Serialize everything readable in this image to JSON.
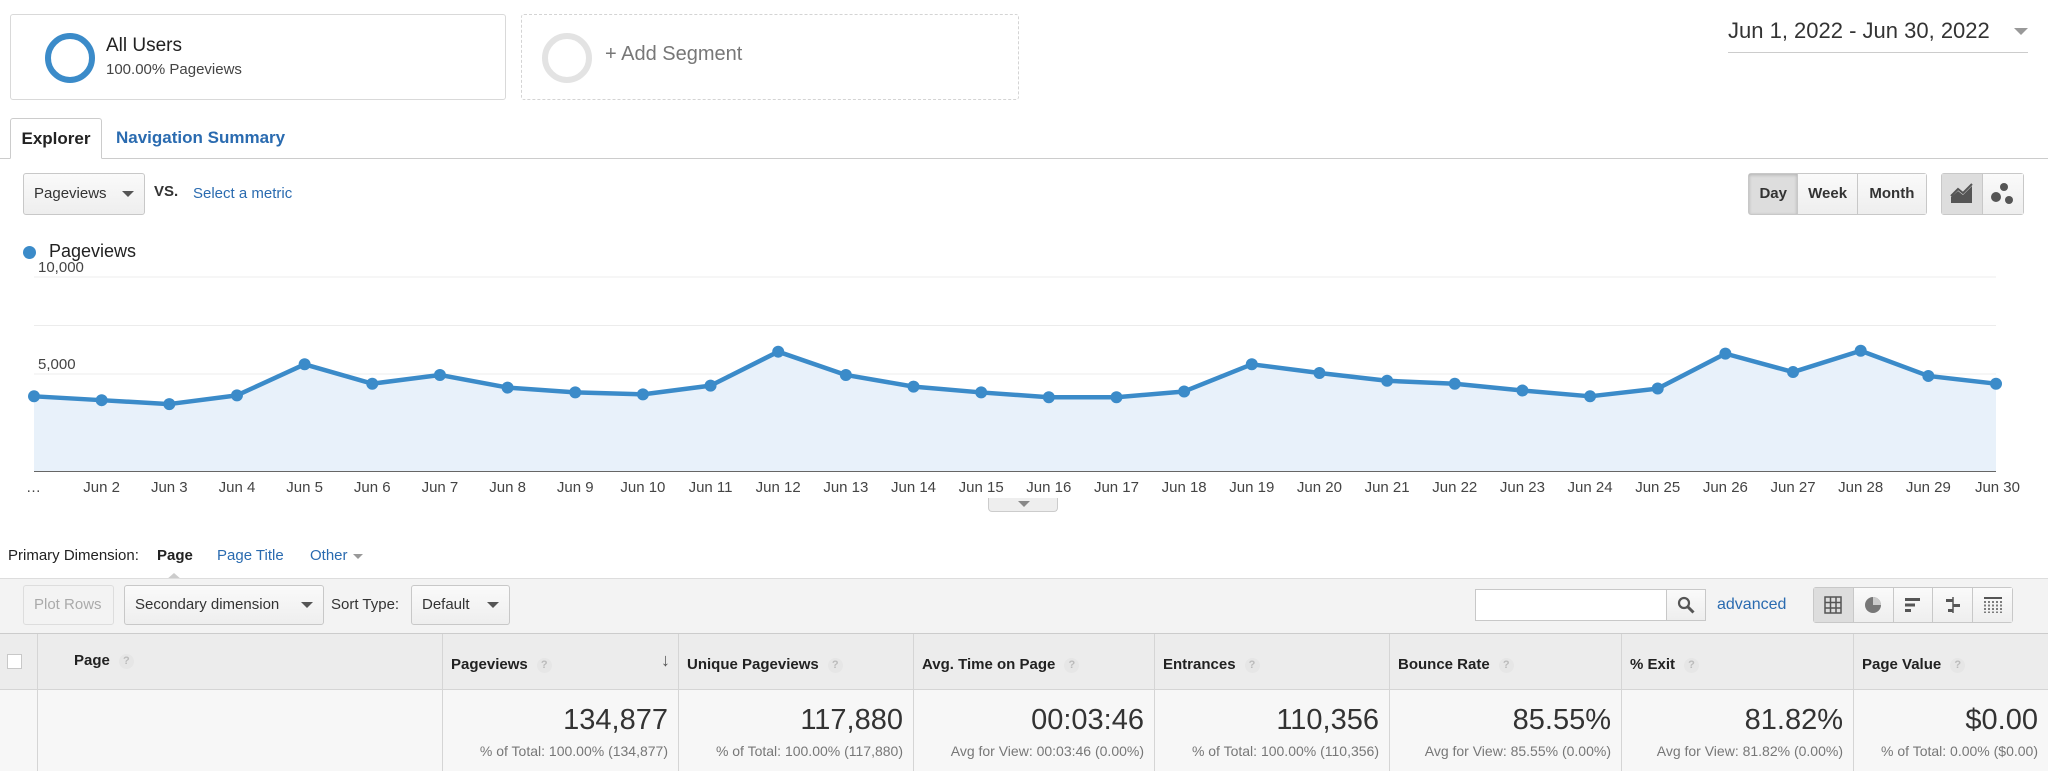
{
  "segments": {
    "all_users": {
      "title": "All Users",
      "subtitle": "100.00% Pageviews"
    },
    "add_segment": "+ Add Segment"
  },
  "date_range": "Jun 1, 2022 - Jun 30, 2022",
  "tabs": {
    "explorer": "Explorer",
    "navigation_summary": "Navigation Summary"
  },
  "metric": {
    "selected": "Pageviews",
    "vs": "VS.",
    "select_metric": "Select a metric"
  },
  "periods": {
    "day": "Day",
    "week": "Week",
    "month": "Month",
    "active": "Day"
  },
  "chart_types": [
    "line-chart-icon",
    "motion-chart-icon"
  ],
  "legend": {
    "label": "Pageviews",
    "color": "#3b8bc9"
  },
  "chart_data": {
    "type": "area",
    "x": [
      "…",
      "Jun 2",
      "Jun 3",
      "Jun 4",
      "Jun 5",
      "Jun 6",
      "Jun 7",
      "Jun 8",
      "Jun 9",
      "Jun 10",
      "Jun 11",
      "Jun 12",
      "Jun 13",
      "Jun 14",
      "Jun 15",
      "Jun 16",
      "Jun 17",
      "Jun 18",
      "Jun 19",
      "Jun 20",
      "Jun 21",
      "Jun 22",
      "Jun 23",
      "Jun 24",
      "Jun 25",
      "Jun 26",
      "Jun 27",
      "Jun 28",
      "Jun 29",
      "Jun 30"
    ],
    "series": [
      {
        "name": "Pageviews",
        "values": [
          3850,
          3650,
          3450,
          3900,
          5500,
          4500,
          4950,
          4300,
          4050,
          3950,
          4400,
          6150,
          4950,
          4350,
          4050,
          3800,
          3800,
          4100,
          5500,
          5050,
          4650,
          4500,
          4150,
          3850,
          4250,
          6050,
          5100,
          6200,
          4900,
          4500
        ]
      }
    ],
    "yticks": [
      "10,000",
      "5,000"
    ],
    "ylim": [
      0,
      10000
    ],
    "color": "#3b8bc9",
    "fill": "#e8f1fa",
    "grid": true
  },
  "primary_dimension": {
    "label": "Primary Dimension:",
    "page": "Page",
    "page_title": "Page Title",
    "other": "Other"
  },
  "toolbar": {
    "plot_rows": "Plot Rows",
    "secondary_dimension": "Secondary dimension",
    "sort_type_label": "Sort Type:",
    "sort_type_value": "Default",
    "search_value": "",
    "advanced": "advanced",
    "view_icons": [
      "data-table-icon",
      "pie-chart-icon",
      "performance-icon",
      "comparison-icon",
      "pivot-icon"
    ]
  },
  "table": {
    "columns": [
      "Page",
      "Pageviews",
      "Unique Pageviews",
      "Avg. Time on Page",
      "Entrances",
      "Bounce Rate",
      "% Exit",
      "Page Value"
    ],
    "help": "?",
    "sort_indicator": "↓",
    "totals": [
      {
        "big": "134,877",
        "small": "% of Total: 100.00% (134,877)"
      },
      {
        "big": "117,880",
        "small": "% of Total: 100.00% (117,880)"
      },
      {
        "big": "00:03:46",
        "small": "Avg for View: 00:03:46 (0.00%)"
      },
      {
        "big": "110,356",
        "small": "% of Total: 100.00% (110,356)"
      },
      {
        "big": "85.55%",
        "small": "Avg for View: 85.55% (0.00%)"
      },
      {
        "big": "81.82%",
        "small": "Avg for View: 81.82% (0.00%)"
      },
      {
        "big": "$0.00",
        "small": "% of Total: 0.00% ($0.00)"
      }
    ]
  }
}
